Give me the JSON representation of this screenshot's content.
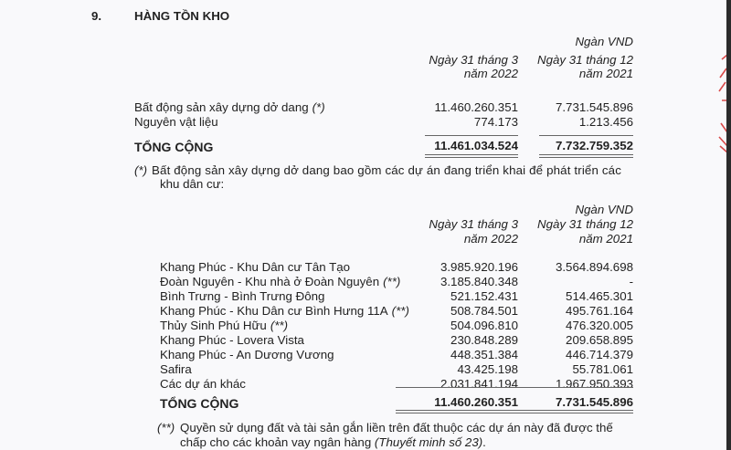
{
  "section": {
    "number": "9.",
    "title": "HÀNG TỒN KHO"
  },
  "table1": {
    "unit": "Ngàn VND",
    "col1": [
      "Ngày 31 tháng 3",
      "năm 2022"
    ],
    "col2": [
      "Ngày 31 tháng 12",
      "năm 2021"
    ],
    "rows": [
      {
        "label": "Bất động sản xây dựng dở dang",
        "note": "(*)",
        "v1": "11.460.260.351",
        "v2": "7.731.545.896"
      },
      {
        "label": "Nguyên vật liệu",
        "note": "",
        "v1": "774.173",
        "v2": "1.213.456"
      }
    ],
    "total": {
      "label": "TỔNG CỘNG",
      "v1": "11.461.034.524",
      "v2": "7.732.759.352"
    }
  },
  "note1": {
    "marker": "(*)",
    "line1": "Bất động sản xây dựng dở dang bao gồm các dự án đang triển khai để phát triển các",
    "line2": "khu dân cư:"
  },
  "table2": {
    "unit": "Ngàn VND",
    "col1": [
      "Ngày 31 tháng 3",
      "năm 2022"
    ],
    "col2": [
      "Ngày 31 tháng 12",
      "năm 2021"
    ],
    "rows": [
      {
        "label": "Khang Phúc - Khu Dân cư Tân Tạo",
        "note": "",
        "v1": "3.985.920.196",
        "v2": "3.564.894.698"
      },
      {
        "label": "Đoàn Nguyên - Khu nhà ở Đoàn Nguyên",
        "note": "(**)",
        "v1": "3.185.840.348",
        "v2": "-"
      },
      {
        "label": "Bình Trưng - Bình Trưng Đông",
        "note": "",
        "v1": "521.152.431",
        "v2": "514.465.301"
      },
      {
        "label": "Khang Phúc - Khu Dân cư Bình Hưng 11A",
        "note": "(**)",
        "v1": "508.784.501",
        "v2": "495.761.164"
      },
      {
        "label": "Thủy Sinh Phú Hữu",
        "note": "(**)",
        "v1": "504.096.810",
        "v2": "476.320.005"
      },
      {
        "label": "Khang Phúc - Lovera Vista",
        "note": "",
        "v1": "230.848.289",
        "v2": "209.658.895"
      },
      {
        "label": "Khang Phúc - An Dương Vương",
        "note": "",
        "v1": "448.351.384",
        "v2": "446.714.379"
      },
      {
        "label": "Safira",
        "note": "",
        "v1": "43.425.198",
        "v2": "55.781.061"
      },
      {
        "label": "Các dự án khác",
        "note": "",
        "v1": "2.031.841.194",
        "v2": "1.967.950.393"
      }
    ],
    "total": {
      "label": "TỔNG CỘNG",
      "v1": "11.460.260.351",
      "v2": "7.731.545.896"
    }
  },
  "note2": {
    "marker": "(**)",
    "line1": "Quyền sử dụng đất và tài sản gắn liền trên đất thuộc các dự án này đã được thế",
    "line2a": "chấp cho các khoản vay ngân hàng ",
    "line2b": "(Thuyết minh số 23)",
    "line2c": "."
  },
  "stamp": {
    "color": "#d94a4a"
  }
}
